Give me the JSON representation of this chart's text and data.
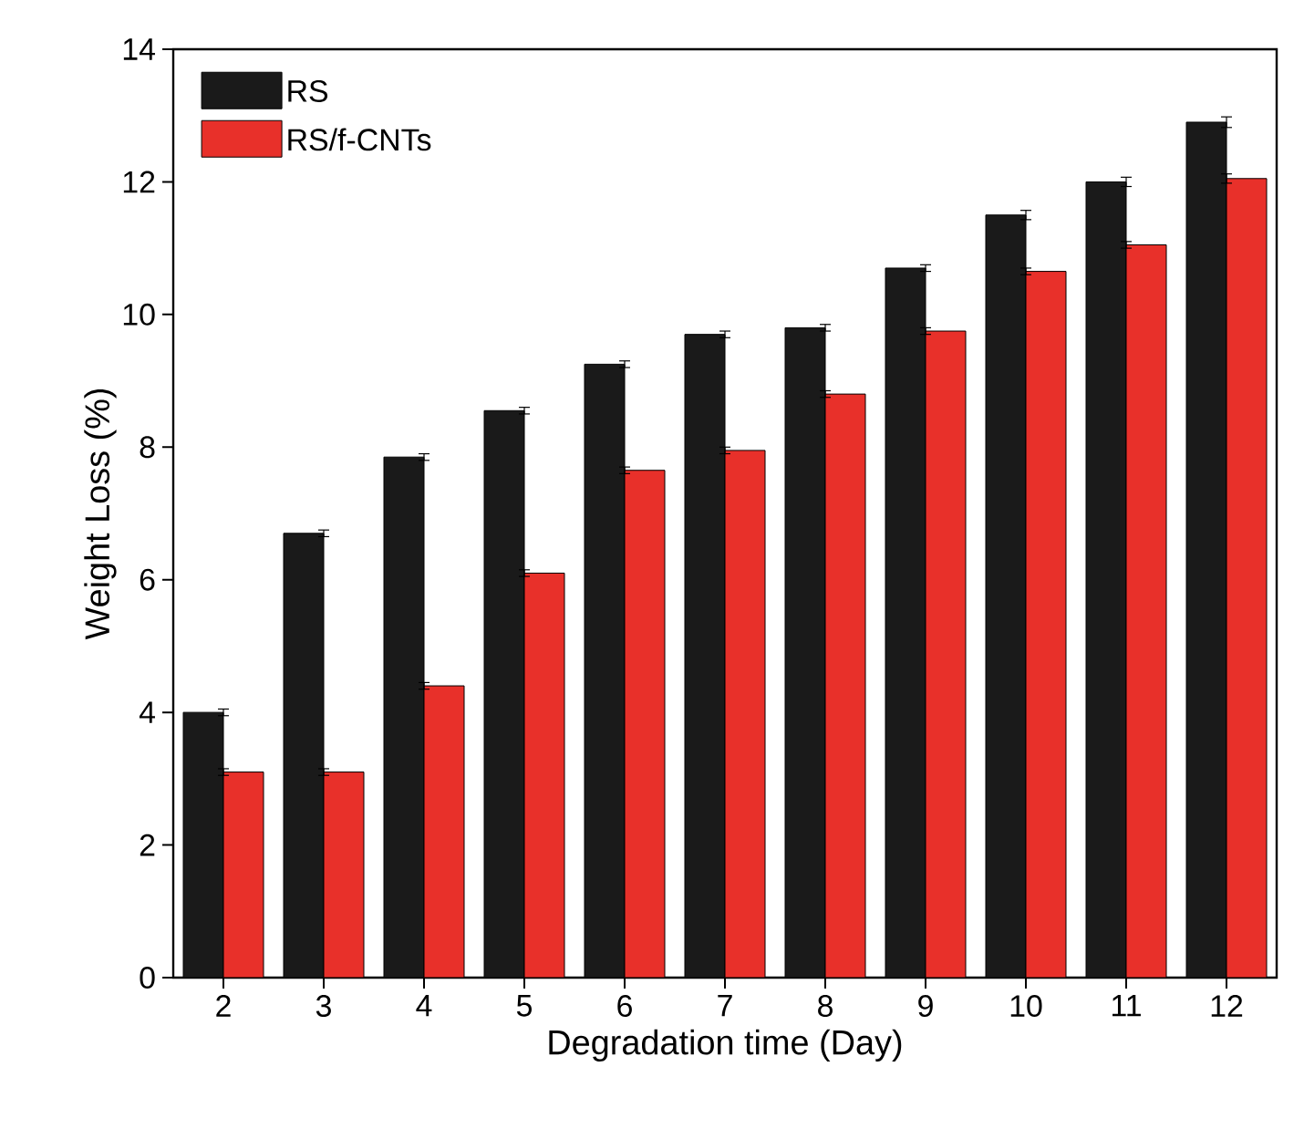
{
  "chart_data": {
    "type": "bar",
    "xlabel": "Degradation time (Day)",
    "ylabel": "Weight Loss (%)",
    "categories": [
      "2",
      "3",
      "4",
      "5",
      "6",
      "7",
      "8",
      "9",
      "10",
      "11",
      "12"
    ],
    "series": [
      {
        "name": "RS",
        "color": "#1a1a1a",
        "values": [
          4.0,
          6.7,
          7.85,
          8.55,
          9.25,
          9.7,
          9.8,
          10.7,
          11.5,
          12.0,
          12.9
        ],
        "errors": [
          0.05,
          0.05,
          0.05,
          0.05,
          0.05,
          0.05,
          0.05,
          0.05,
          0.07,
          0.07,
          0.08
        ]
      },
      {
        "name": "RS/f-CNTs",
        "color": "#e8302a",
        "values": [
          3.1,
          3.1,
          4.4,
          6.1,
          7.65,
          7.95,
          8.8,
          9.75,
          10.65,
          11.05,
          12.05
        ],
        "errors": [
          0.05,
          0.05,
          0.05,
          0.05,
          0.05,
          0.05,
          0.05,
          0.05,
          0.05,
          0.05,
          0.07
        ]
      }
    ],
    "ylim": [
      0,
      14
    ],
    "yticks": [
      0,
      2,
      4,
      6,
      8,
      10,
      12,
      14
    ],
    "legend": "top left"
  }
}
